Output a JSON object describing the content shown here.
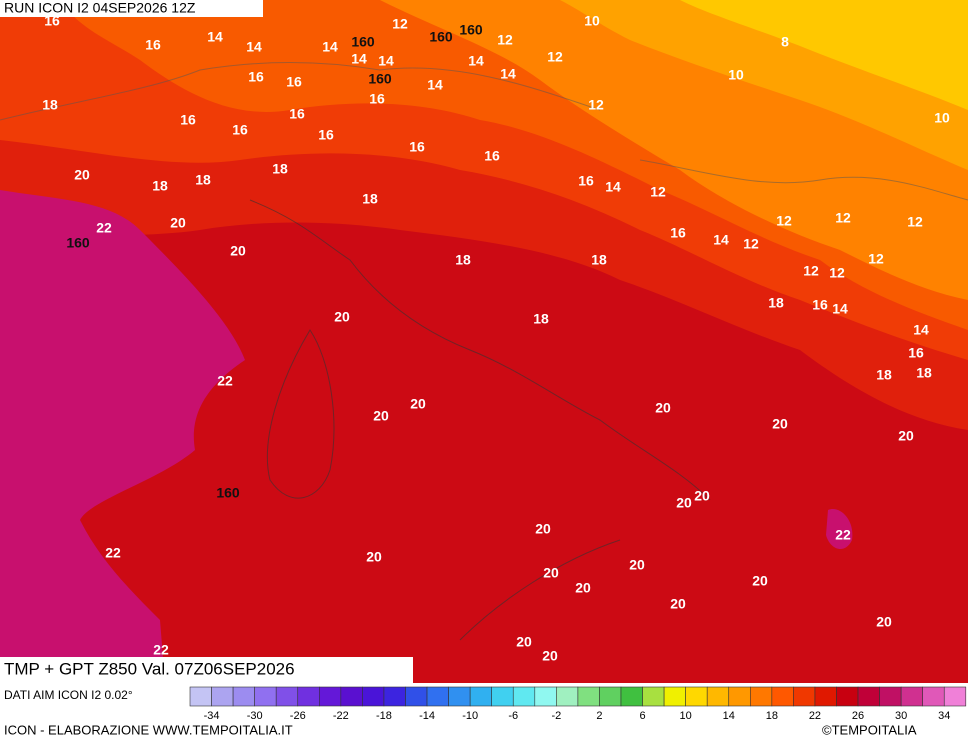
{
  "header": {
    "run": "RUN ICON I2 04SEP2026 12Z"
  },
  "map": {
    "labels": [
      16,
      16,
      14,
      14,
      14,
      160,
      12,
      160,
      160,
      12,
      10,
      8,
      14,
      14,
      160,
      16,
      16,
      14,
      14,
      14,
      12,
      10,
      18,
      16,
      16,
      16,
      16,
      16,
      12,
      10,
      16,
      16,
      20,
      18,
      18,
      18,
      16,
      14,
      12,
      18,
      20,
      22,
      160,
      20,
      18,
      18,
      16,
      14,
      12,
      12,
      12,
      12,
      12,
      12,
      12,
      18,
      16,
      14,
      20,
      18,
      14,
      16,
      18,
      18,
      22,
      20,
      20,
      20,
      20,
      20,
      160,
      20,
      20,
      20,
      22,
      22,
      20,
      20,
      20,
      20,
      20,
      20,
      20,
      20,
      20,
      22
    ]
  },
  "footer": {
    "title": "TMP + GPT Z850 Val. 07Z06SEP2026",
    "source": "DATI AIM ICON I2 0.02°",
    "credit": "ICON - ELABORAZIONE WWW.TEMPOITALIA.IT",
    "copyright": "©TEMPOITALIA"
  },
  "colorbar": {
    "ticks": [
      -34,
      -30,
      -26,
      -22,
      -18,
      -14,
      -10,
      -6,
      -2,
      2,
      6,
      10,
      14,
      18,
      22,
      26,
      30,
      34
    ]
  }
}
